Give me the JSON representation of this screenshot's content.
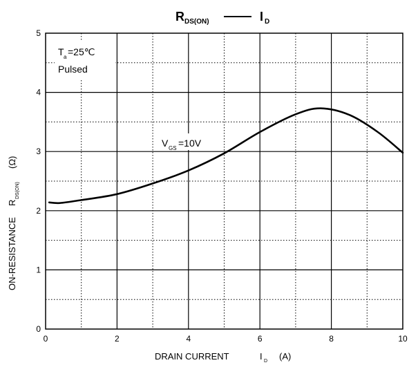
{
  "chart_data": {
    "type": "line",
    "title": {
      "left_main": "R",
      "left_sub": "DS(ON)",
      "right_main": "I",
      "right_sub": "D"
    },
    "xlabel": {
      "main": "DRAIN CURRENT",
      "symbol": "I",
      "sub": "D",
      "unit": "(A)"
    },
    "ylabel": {
      "main": "ON-RESISTANCE",
      "symbol": "R",
      "sub": "DS(ON)",
      "unit": "(Ω)"
    },
    "xlim": [
      0,
      10
    ],
    "ylim": [
      0,
      5
    ],
    "x_ticks": [
      "0",
      "2",
      "4",
      "6",
      "8",
      "10"
    ],
    "y_ticks": [
      "0",
      "1",
      "2",
      "3",
      "4",
      "5"
    ],
    "grid": {
      "major": "solid",
      "minor": "dotted"
    },
    "conditions": {
      "temp_main": "T",
      "temp_sub": "a",
      "temp_value": "=25℃",
      "mode": "Pulsed"
    },
    "series_label": {
      "main": "V",
      "sub": "GS",
      "value": "=10V"
    },
    "series": [
      {
        "x": [
          0.1,
          0.4,
          1.0,
          2.0,
          3.0,
          4.0,
          5.0,
          6.0,
          7.0,
          7.7,
          8.5,
          9.3,
          10.0
        ],
        "y": [
          2.14,
          2.13,
          2.18,
          2.28,
          2.46,
          2.68,
          2.97,
          3.33,
          3.63,
          3.73,
          3.62,
          3.33,
          2.98
        ]
      }
    ]
  }
}
